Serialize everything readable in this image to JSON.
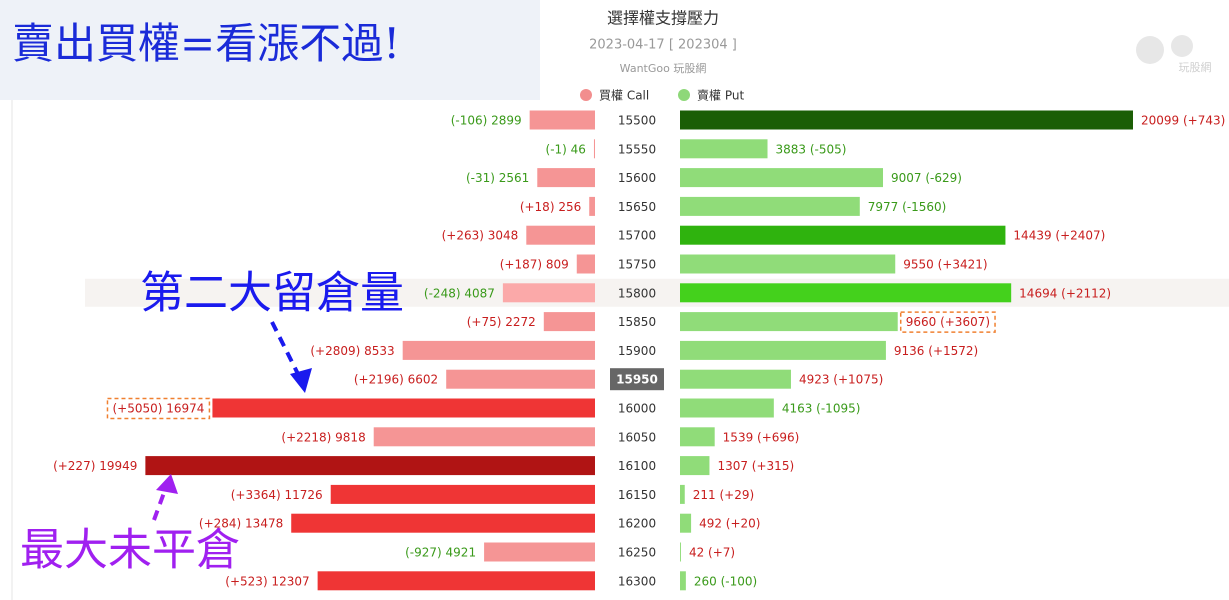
{
  "chart_data": {
    "type": "butterfly",
    "title": "選擇權支撐壓力",
    "subtitle": "2023-04-17 [ 202304 ]",
    "source": "WantGoo 玩股網",
    "watermark": "玩股網",
    "annotations": [
      "賣出買權=看漲不過!",
      "第二大留倉量",
      "最大未平倉"
    ],
    "categories": [
      "15500",
      "15550",
      "15600",
      "15650",
      "15700",
      "15750",
      "15800",
      "15850",
      "15900",
      "15950",
      "16000",
      "16050",
      "16100",
      "16150",
      "16200",
      "16250",
      "16300"
    ],
    "current_category_index": 9,
    "band_index": 6,
    "series": [
      {
        "name": "買權 Call",
        "color": "#f28e8e",
        "side": "left",
        "values": [
          2899,
          46,
          2561,
          256,
          3048,
          809,
          4087,
          2272,
          8533,
          6602,
          16974,
          9818,
          19949,
          11726,
          13478,
          4921,
          12307
        ],
        "changes": [
          -106,
          -1,
          -31,
          18,
          263,
          187,
          -248,
          75,
          2809,
          2196,
          5050,
          2218,
          227,
          3364,
          284,
          -927,
          523
        ],
        "value_labels": [
          "(-106) 2899",
          "(-1) 46",
          "(-31) 2561",
          "(+18) 256",
          "(+263) 3048",
          "(+187) 809",
          "(-248) 4087",
          "(+75) 2272",
          "(+2809) 8533",
          "(+2196) 6602",
          "(+5050) 16974",
          "(+2218) 9818",
          "(+227) 19949",
          "(+3364) 11726",
          "(+284) 13478",
          "(-927) 4921",
          "(+523) 12307"
        ],
        "colors": [
          "#f59595",
          "#f59595",
          "#f59595",
          "#f59595",
          "#f59595",
          "#f59595",
          "#fba9a9",
          "#f59595",
          "#f59595",
          "#f59595",
          "#ef3535",
          "#f59595",
          "#b01414",
          "#ef3535",
          "#ef3535",
          "#f59595",
          "#ef3535"
        ],
        "boxed": [
          10
        ]
      },
      {
        "name": "賣權 Put",
        "color": "#8ed879",
        "side": "right",
        "values": [
          20099,
          3883,
          9007,
          7977,
          14439,
          9550,
          14694,
          9660,
          9136,
          4923,
          4163,
          1539,
          1307,
          211,
          492,
          42,
          260
        ],
        "changes": [
          743,
          -505,
          -629,
          -1560,
          2407,
          3421,
          2112,
          3607,
          1572,
          1075,
          -1095,
          696,
          315,
          29,
          20,
          7,
          -100
        ],
        "value_labels": [
          "20099 (+743)",
          "3883 (-505)",
          "9007 (-629)",
          "7977 (-1560)",
          "14439 (+2407)",
          "9550 (+3421)",
          "14694 (+2112)",
          "9660 (+3607)",
          "9136 (+1572)",
          "4923 (+1075)",
          "4163 (-1095)",
          "1539 (+696)",
          "1307 (+315)",
          "211 (+29)",
          "492 (+20)",
          "42 (+7)",
          "260 (-100)"
        ],
        "colors": [
          "#1b5e05",
          "#90dc79",
          "#90dc79",
          "#90dc79",
          "#2fb30e",
          "#90dc79",
          "#44d11c",
          "#90dc79",
          "#90dc79",
          "#90dc79",
          "#90dc79",
          "#90dc79",
          "#90dc79",
          "#90dc79",
          "#90dc79",
          "#90dc79",
          "#90dc79"
        ],
        "boxed": [
          7
        ]
      }
    ]
  }
}
